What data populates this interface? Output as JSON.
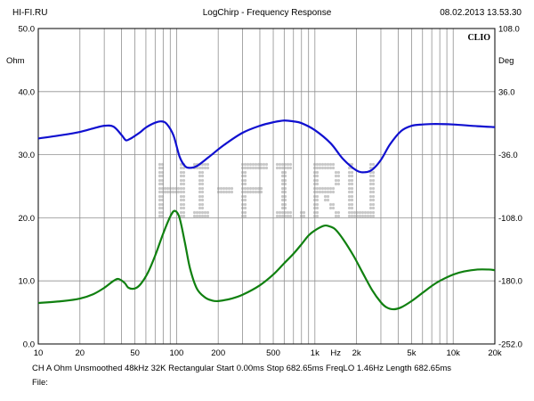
{
  "header": {
    "left": "HI-FI.RU",
    "title": "LogChirp - Frequency Response",
    "timestamp": "08.02.2013 13.53.30"
  },
  "watermark": {
    "text": "HI-FI.RU",
    "color": "#c8c8c8"
  },
  "chart_data": {
    "type": "line",
    "title": "LogChirp - Frequency Response",
    "brand_label": "CLIO",
    "x_scale": "log",
    "xlim": [
      10,
      20000
    ],
    "x_ticks": [
      {
        "v": 10,
        "label": "10"
      },
      {
        "v": 20,
        "label": "20"
      },
      {
        "v": 50,
        "label": "50"
      },
      {
        "v": 100,
        "label": "100"
      },
      {
        "v": 200,
        "label": "200"
      },
      {
        "v": 500,
        "label": "500"
      },
      {
        "v": 1000,
        "label": "1k"
      },
      {
        "v": 2000,
        "label": "2k"
      },
      {
        "v": 5000,
        "label": "5k"
      },
      {
        "v": 10000,
        "label": "10k"
      },
      {
        "v": 20000,
        "label": "20k"
      }
    ],
    "x_unit": "Hz",
    "ylim_left": [
      0,
      50
    ],
    "y_ticks_left": [
      "0.0",
      "10.0",
      "20.0",
      "30.0",
      "40.0",
      "50.0"
    ],
    "y_unit_left": "Ohm",
    "ylim_right": [
      -252,
      108
    ],
    "y_ticks_right": [
      "-252.0",
      "-180.0",
      "-108.0",
      "-36.0",
      "36.0",
      "108.0"
    ],
    "y_unit_right": "Deg",
    "grid": true,
    "series": [
      {
        "axis": "right",
        "color": "#1010d0",
        "points": [
          [
            10,
            -17.5
          ],
          [
            15,
            -13.5
          ],
          [
            20,
            -10
          ],
          [
            25,
            -6
          ],
          [
            30,
            -3
          ],
          [
            35,
            -4
          ],
          [
            40,
            -13.5
          ],
          [
            43,
            -19.5
          ],
          [
            46,
            -18
          ],
          [
            50,
            -14.5
          ],
          [
            55,
            -10
          ],
          [
            60,
            -5
          ],
          [
            70,
            0.5
          ],
          [
            78,
            2
          ],
          [
            85,
            -1
          ],
          [
            95,
            -14
          ],
          [
            105,
            -38
          ],
          [
            115,
            -49
          ],
          [
            125,
            -51
          ],
          [
            140,
            -49
          ],
          [
            170,
            -39
          ],
          [
            220,
            -25
          ],
          [
            300,
            -11
          ],
          [
            400,
            -3
          ],
          [
            500,
            1
          ],
          [
            600,
            3
          ],
          [
            700,
            2
          ],
          [
            800,
            0
          ],
          [
            1000,
            -8
          ],
          [
            1300,
            -23
          ],
          [
            1600,
            -41
          ],
          [
            2000,
            -54
          ],
          [
            2300,
            -56
          ],
          [
            2600,
            -53
          ],
          [
            3000,
            -42
          ],
          [
            3500,
            -24
          ],
          [
            4200,
            -9
          ],
          [
            5000,
            -3
          ],
          [
            6000,
            -1.5
          ],
          [
            7000,
            -1
          ],
          [
            8000,
            -1
          ],
          [
            10000,
            -1.5
          ],
          [
            15000,
            -3.5
          ],
          [
            20000,
            -4.5
          ]
        ]
      },
      {
        "axis": "left",
        "color": "#108010",
        "points": [
          [
            10,
            6.5
          ],
          [
            15,
            6.8
          ],
          [
            20,
            7.2
          ],
          [
            25,
            7.9
          ],
          [
            30,
            8.9
          ],
          [
            35,
            10
          ],
          [
            38,
            10.3
          ],
          [
            42,
            9.7
          ],
          [
            45,
            8.9
          ],
          [
            50,
            8.8
          ],
          [
            55,
            9.5
          ],
          [
            62,
            11.3
          ],
          [
            70,
            14
          ],
          [
            80,
            17.5
          ],
          [
            90,
            20.2
          ],
          [
            97,
            21.1
          ],
          [
            105,
            20
          ],
          [
            115,
            16
          ],
          [
            125,
            12
          ],
          [
            140,
            8.8
          ],
          [
            160,
            7.4
          ],
          [
            180,
            6.9
          ],
          [
            200,
            6.8
          ],
          [
            250,
            7.2
          ],
          [
            300,
            7.8
          ],
          [
            400,
            9.3
          ],
          [
            500,
            11
          ],
          [
            600,
            12.8
          ],
          [
            700,
            14.3
          ],
          [
            800,
            15.8
          ],
          [
            900,
            17.2
          ],
          [
            1000,
            18
          ],
          [
            1150,
            18.7
          ],
          [
            1250,
            18.7
          ],
          [
            1400,
            18.2
          ],
          [
            1600,
            16.6
          ],
          [
            1900,
            14
          ],
          [
            2200,
            11.4
          ],
          [
            2600,
            8.5
          ],
          [
            3000,
            6.6
          ],
          [
            3300,
            5.8
          ],
          [
            3700,
            5.5
          ],
          [
            4200,
            5.8
          ],
          [
            5000,
            6.8
          ],
          [
            6000,
            8.1
          ],
          [
            7000,
            9.2
          ],
          [
            8000,
            10
          ],
          [
            10000,
            11
          ],
          [
            12000,
            11.5
          ],
          [
            15000,
            11.8
          ],
          [
            18000,
            11.8
          ],
          [
            20000,
            11.7
          ]
        ]
      }
    ]
  },
  "footer": {
    "line1": "CH A   Ohm   Unsmoothed   48kHz   32K   Rectangular   Start 0.00ms    Stop 682.65ms    FreqLO 1.46Hz    Length 682.65ms",
    "line2": "File:"
  }
}
